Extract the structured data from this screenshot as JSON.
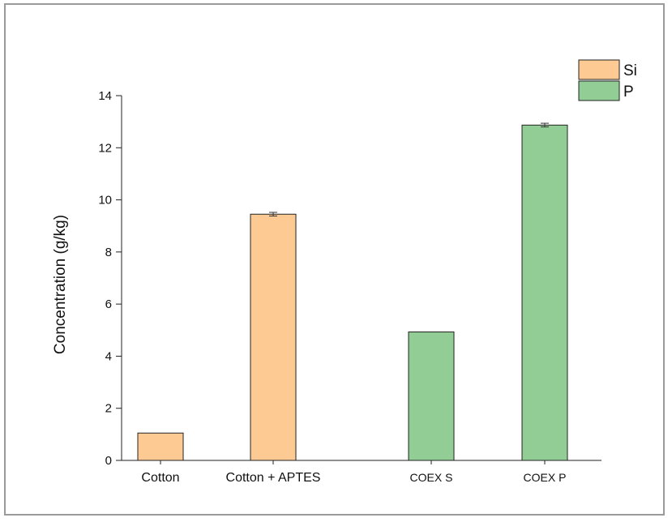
{
  "chart_data": {
    "type": "bar",
    "title": "",
    "ylabel": "Concentration (g/kg)",
    "xlabel": "",
    "ylim": [
      0,
      14
    ],
    "yticks": [
      0,
      2,
      4,
      6,
      8,
      10,
      12,
      14
    ],
    "grid": false,
    "legend_position": "top-right",
    "categories": [
      "Cotton",
      "Cotton + APTES",
      "COEX S",
      "COEX P"
    ],
    "series": [
      {
        "name": "Si",
        "color": "#fdca93",
        "values": [
          1.05,
          9.45,
          null,
          null
        ],
        "errors": [
          null,
          0.07,
          null,
          null
        ]
      },
      {
        "name": "P",
        "color": "#93cd96",
        "values": [
          null,
          null,
          4.93,
          12.87
        ],
        "errors": [
          null,
          null,
          null,
          0.07
        ]
      }
    ],
    "bar_edge_color": "#222222"
  }
}
